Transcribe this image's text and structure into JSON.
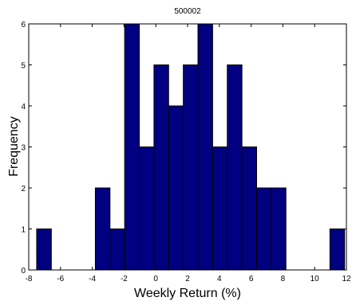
{
  "chart_data": {
    "type": "bar",
    "title": "500002",
    "xlabel": "Weekly Return (%)",
    "ylabel": "Frequency",
    "xlim": [
      -8,
      12
    ],
    "ylim": [
      0,
      6
    ],
    "xticks": [
      -8,
      -6,
      -4,
      -2,
      0,
      2,
      4,
      6,
      8,
      10,
      12
    ],
    "yticks": [
      0,
      1,
      2,
      3,
      4,
      5,
      6
    ],
    "bin_width": 0.9231,
    "bin_starts": [
      -7.5,
      -6.5769,
      -5.6538,
      -4.7308,
      -3.8077,
      -2.8846,
      -1.9615,
      -1.0385,
      -0.1154,
      0.8077,
      1.7308,
      2.6538,
      3.5769,
      4.5,
      5.4231,
      6.3462,
      7.2692,
      8.1923,
      9.1154,
      10.0385,
      10.9615
    ],
    "values": [
      1,
      0,
      0,
      0,
      2,
      1,
      6,
      3,
      5,
      4,
      5,
      6,
      3,
      5,
      3,
      2,
      2,
      0,
      0,
      0,
      1
    ],
    "bar_color": "#000080",
    "grid": false,
    "legend": "none"
  }
}
